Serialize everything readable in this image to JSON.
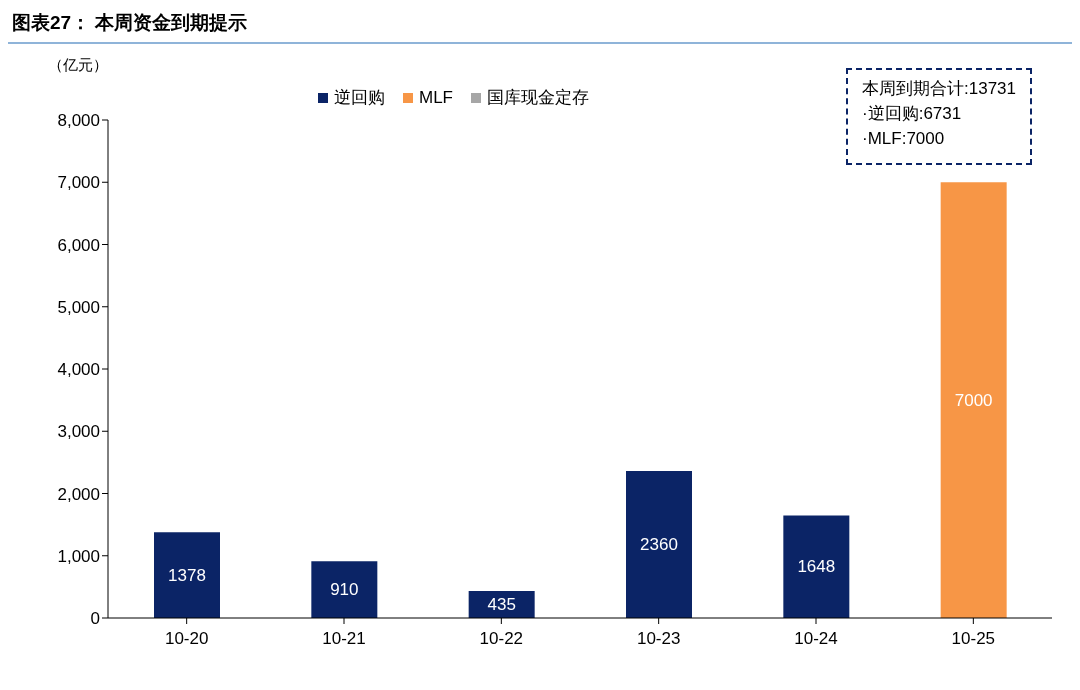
{
  "chart_data": {
    "type": "bar",
    "title": "图表27： 本周资金到期提示",
    "ylabel": "（亿元）",
    "categories": [
      "10-20",
      "10-21",
      "10-22",
      "10-23",
      "10-24",
      "10-25"
    ],
    "series": [
      {
        "name": "逆回购",
        "color": "#0b2466",
        "values": [
          1378,
          910,
          435,
          2360,
          1648,
          null
        ]
      },
      {
        "name": "MLF",
        "color": "#f79646",
        "values": [
          null,
          null,
          null,
          null,
          null,
          7000
        ]
      },
      {
        "name": "国库现金定存",
        "color": "#a6a6a6",
        "values": [
          null,
          null,
          null,
          null,
          null,
          null
        ]
      }
    ],
    "stacked": true,
    "data_labels": true,
    "legend": "top",
    "grid": false,
    "ylim": [
      0,
      8000
    ],
    "yticks": [
      0,
      {
        "value": 1000,
        "label": "1,000"
      },
      {
        "value": 2000,
        "label": "2,000"
      },
      {
        "value": 3000,
        "label": "3,000"
      },
      {
        "value": 4000,
        "label": "4,000"
      },
      {
        "value": 5000,
        "label": "5,000"
      },
      {
        "value": 6000,
        "label": "6,000"
      },
      {
        "value": 7000,
        "label": "7,000"
      },
      {
        "value": 8000,
        "label": "8,000"
      }
    ],
    "annotations": [
      "本周到期合计:13731",
      "·逆回购:6731",
      "·MLF:7000"
    ]
  }
}
